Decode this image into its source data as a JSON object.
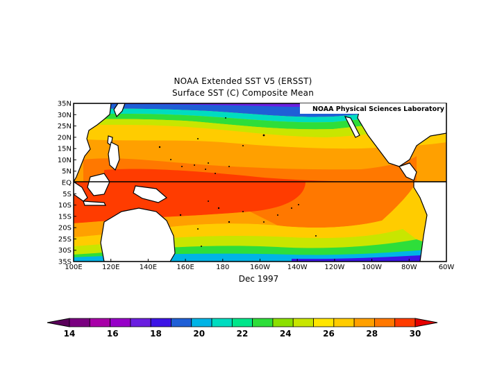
{
  "title_line1": "NOAA Extended SST V5 (ERSST)",
  "title_line2": "Surface SST (C) Composite Mean",
  "credit": "NOAA Physical Sciences Laboratory",
  "date_label": "Dec 1997",
  "lat_labels": [
    "35N",
    "30N",
    "25N",
    "20N",
    "15N",
    "10N",
    "5N",
    "EQ",
    "5S",
    "10S",
    "15S",
    "20S",
    "25S",
    "30S",
    "35S"
  ],
  "lon_labels": [
    "100E",
    "120E",
    "140E",
    "160E",
    "180",
    "160W",
    "140W",
    "120W",
    "100W",
    "80W",
    "60W"
  ],
  "colorbar": {
    "labels": [
      "14",
      "16",
      "18",
      "20",
      "22",
      "24",
      "26",
      "28",
      "30"
    ],
    "colors": [
      "#7a0080",
      "#a800a8",
      "#9700c8",
      "#6a1ee0",
      "#3c14e6",
      "#1f5fd6",
      "#00b4e6",
      "#00dcc0",
      "#00e68a",
      "#2ede3a",
      "#8ce000",
      "#c8e600",
      "#ffe600",
      "#ffcc00",
      "#ffa000",
      "#ff7800",
      "#ff3c00"
    ],
    "low_color": "#5a005a",
    "high_color": "#e60000"
  },
  "colors": {
    "land": "#ffffff",
    "ocean_warm": "#ff3c00",
    "ocean_orange": "#ff7800"
  }
}
